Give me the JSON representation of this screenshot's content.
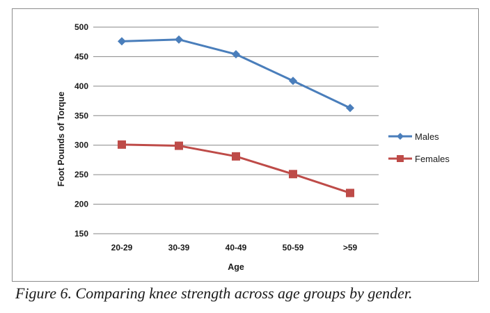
{
  "caption": "Figure 6. Comparing knee strength across age groups by gender.",
  "chart_data": {
    "type": "line",
    "title": "",
    "xlabel": "Age",
    "ylabel": "Foot Pounds of Torque",
    "categories": [
      "20-29",
      "30-39",
      "40-49",
      "50-59",
      ">59"
    ],
    "ylim": [
      150,
      500
    ],
    "yticks": [
      150,
      200,
      250,
      300,
      350,
      400,
      450,
      500
    ],
    "grid": true,
    "legend_position": "right",
    "series": [
      {
        "name": "Males",
        "values": [
          476,
          479,
          454,
          409,
          363
        ],
        "color": "#4a7ebb",
        "marker": "diamond"
      },
      {
        "name": "Females",
        "values": [
          301,
          299,
          281,
          251,
          219
        ],
        "color": "#be4b48",
        "marker": "square"
      }
    ]
  }
}
